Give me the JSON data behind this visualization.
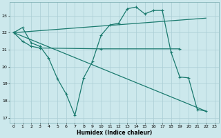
{
  "xlabel": "Humidex (Indice chaleur)",
  "bg_color": "#cce8ec",
  "grid_color": "#aacdd4",
  "line_color": "#1a7a6e",
  "xlim": [
    -0.5,
    23.5
  ],
  "ylim": [
    16.7,
    23.8
  ],
  "yticks": [
    17,
    18,
    19,
    20,
    21,
    22,
    23
  ],
  "xticks": [
    0,
    1,
    2,
    3,
    4,
    5,
    6,
    7,
    8,
    9,
    10,
    11,
    12,
    13,
    14,
    15,
    16,
    17,
    18,
    19,
    20,
    21,
    22,
    23
  ],
  "line1_x": [
    0,
    1,
    2,
    3,
    4,
    5,
    6,
    7,
    8,
    9,
    10,
    11,
    12,
    13,
    14,
    15,
    16,
    17,
    18,
    19,
    20,
    21,
    22
  ],
  "line1_y": [
    22.0,
    22.3,
    21.4,
    21.2,
    20.5,
    19.3,
    18.4,
    17.15,
    19.35,
    20.3,
    21.85,
    22.45,
    22.55,
    23.4,
    23.5,
    23.1,
    23.3,
    23.3,
    20.85,
    19.4,
    19.35,
    17.5,
    17.4
  ],
  "line2_x": [
    0,
    1,
    2,
    3,
    10,
    19
  ],
  "line2_y": [
    22.0,
    21.5,
    21.2,
    21.1,
    21.05,
    21.05
  ],
  "line3_x": [
    0,
    22
  ],
  "line3_y": [
    22.0,
    17.4
  ],
  "line4_x": [
    0,
    22
  ],
  "line4_y": [
    22.0,
    22.85
  ]
}
